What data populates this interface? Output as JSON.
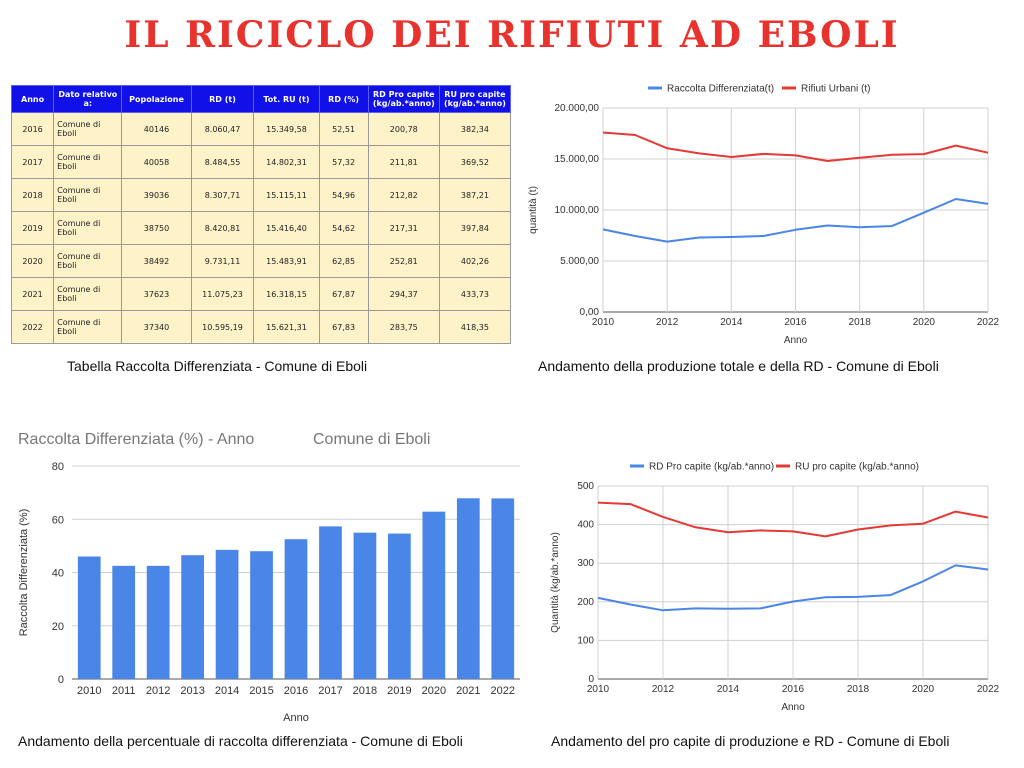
{
  "title": "IL RICICLO DEI RIFIUTI AD EBOLI",
  "table": {
    "headers": [
      "Anno",
      "Dato relativo a:",
      "Popolazione",
      "RD (t)",
      "Tot. RU (t)",
      "RD (%)",
      "RD Pro capite (kg/ab.*anno)",
      "RU pro capite (kg/ab.*anno)"
    ],
    "rows": [
      [
        "2016",
        "Comune di Eboli",
        "40146",
        "8.060,47",
        "15.349,58",
        "52,51",
        "200,78",
        "382,34"
      ],
      [
        "2017",
        "Comune di Eboli",
        "40058",
        "8.484,55",
        "14.802,31",
        "57,32",
        "211,81",
        "369,52"
      ],
      [
        "2018",
        "Comune di Eboli",
        "39036",
        "8.307,71",
        "15.115,11",
        "54,96",
        "212,82",
        "387,21"
      ],
      [
        "2019",
        "Comune di Eboli",
        "38750",
        "8.420,81",
        "15.416,40",
        "54,62",
        "217,31",
        "397,84"
      ],
      [
        "2020",
        "Comune di Eboli",
        "38492",
        "9.731,11",
        "15.483,91",
        "62,85",
        "252,81",
        "402,26"
      ],
      [
        "2021",
        "Comune di Eboli",
        "37623",
        "11.075,23",
        "16.318,15",
        "67,87",
        "294,37",
        "433,73"
      ],
      [
        "2022",
        "Comune di Eboli",
        "37340",
        "10.595,19",
        "15.621,31",
        "67,83",
        "283,75",
        "418,35"
      ]
    ]
  },
  "captions": {
    "table": "Tabella Raccolta Differenziata - Comune di Eboli",
    "chart1": "Andamento della produzione totale e della RD - Comune di Eboli",
    "chart2": "Andamento della percentuale di raccolta differenziata - Comune di Eboli",
    "chart3": "Andamento del pro capite di produzione e RD - Comune di Eboli"
  },
  "colors": {
    "blue": "#4a86e8",
    "red": "#e53935",
    "title": "#e8322d",
    "table_header": "#1010e8",
    "table_cell": "#fdf2c8"
  },
  "chart_data": [
    {
      "type": "line",
      "title": "",
      "xlabel": "Anno",
      "ylabel": "quantità (t)",
      "x": [
        2010,
        2011,
        2012,
        2013,
        2014,
        2015,
        2016,
        2017,
        2018,
        2019,
        2020,
        2021,
        2022
      ],
      "xticks": [
        "2010",
        "2012",
        "2014",
        "2016",
        "2018",
        "2020",
        "2022"
      ],
      "yticks": [
        "0,00",
        "5.000,00",
        "10.000,00",
        "15.000,00",
        "20.000,00"
      ],
      "ylim": [
        0,
        20000
      ],
      "grid": true,
      "legend": "top",
      "series": [
        {
          "name": "Raccolta Differenziata(t)",
          "color": "#4a86e8",
          "values": [
            8100,
            7450,
            6900,
            7300,
            7350,
            7450,
            8060.47,
            8484.55,
            8307.71,
            8420.81,
            9731.11,
            11075.23,
            10595.19
          ]
        },
        {
          "name": "Rifiuti Urbani (t)",
          "color": "#e53935",
          "values": [
            17600,
            17350,
            16050,
            15550,
            15200,
            15500,
            15349.58,
            14802.31,
            15115.11,
            15416.4,
            15483.91,
            16318.15,
            15621.31
          ]
        }
      ]
    },
    {
      "type": "bar",
      "title": "Raccolta Differenziata (%) - Anno",
      "subtitle": "Comune di Eboli",
      "xlabel": "Anno",
      "ylabel": "Raccolta Differenziata (%)",
      "categories": [
        "2010",
        "2011",
        "2012",
        "2013",
        "2014",
        "2015",
        "2016",
        "2017",
        "2018",
        "2019",
        "2020",
        "2021",
        "2022"
      ],
      "values": [
        46,
        42.5,
        42.5,
        46.5,
        48.5,
        48,
        52.51,
        57.32,
        54.96,
        54.62,
        62.85,
        67.87,
        67.83
      ],
      "yticks": [
        "0",
        "20",
        "40",
        "60",
        "80"
      ],
      "ylim": [
        0,
        80
      ],
      "grid": true,
      "color": "#4a86e8"
    },
    {
      "type": "line",
      "title": "",
      "xlabel": "Anno",
      "ylabel": "Quantità (kg/ab.*anno)",
      "x": [
        2010,
        2011,
        2012,
        2013,
        2014,
        2015,
        2016,
        2017,
        2018,
        2019,
        2020,
        2021,
        2022
      ],
      "xticks": [
        "2010",
        "2012",
        "2014",
        "2016",
        "2018",
        "2020",
        "2022"
      ],
      "yticks": [
        "0",
        "100",
        "200",
        "300",
        "400",
        "500"
      ],
      "ylim": [
        0,
        500
      ],
      "grid": true,
      "legend": "top",
      "series": [
        {
          "name": "RD Pro capite (kg/ab.*anno)",
          "color": "#4a86e8",
          "values": [
            210,
            193,
            178,
            183,
            182,
            183,
            200.78,
            211.81,
            212.82,
            217.31,
            252.81,
            294.37,
            283.75
          ]
        },
        {
          "name": "RU pro capite (kg/ab.*anno)",
          "color": "#e53935",
          "values": [
            457,
            453,
            420,
            393,
            380,
            385,
            382.34,
            369.52,
            387.21,
            397.84,
            402.26,
            433.73,
            418.35
          ]
        }
      ]
    }
  ]
}
